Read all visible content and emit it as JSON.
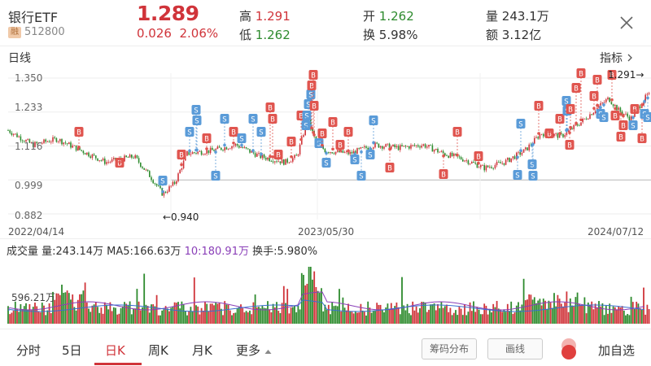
{
  "header": {
    "name": "银行ETF",
    "rong": "融",
    "code": "512800",
    "price": "1.289",
    "change": "0.026",
    "change_pct": "2.06%",
    "high_label": "高",
    "high": "1.291",
    "low_label": "低",
    "low": "1.262",
    "open_label": "开",
    "open": "1.262",
    "turnover_label": "换",
    "turnover": "5.98%",
    "volume_label": "量",
    "volume": "243.1万",
    "amount_label": "额",
    "amount": "3.12亿"
  },
  "kline": {
    "title": "日线",
    "indicator_label": "指标",
    "y_ticks": [
      "1.350",
      "1.233",
      "1.116",
      "0.999",
      "0.882"
    ],
    "dates": [
      "2022/04/14",
      "2023/05/30",
      "2024/07/12"
    ],
    "min_marker": "←0.940",
    "max_marker": "1.291→"
  },
  "volume": {
    "title": "成交量",
    "vol": "量:243.14万",
    "ma5": "MA5:166.63万",
    "ma10": "10:180.91万",
    "turnover": "换手:5.980%",
    "y_tick": "596.21万"
  },
  "tabs": [
    "分时",
    "5日",
    "日K",
    "周K",
    "月K",
    "更多"
  ],
  "buttons": {
    "chip": "筹码分布",
    "draw": "画线",
    "add": "加自选"
  },
  "colors": {
    "up": "#d0343a",
    "down": "#2e8b2e",
    "buy_marker": "#e0554f",
    "sell_marker": "#5a9bd8"
  }
}
